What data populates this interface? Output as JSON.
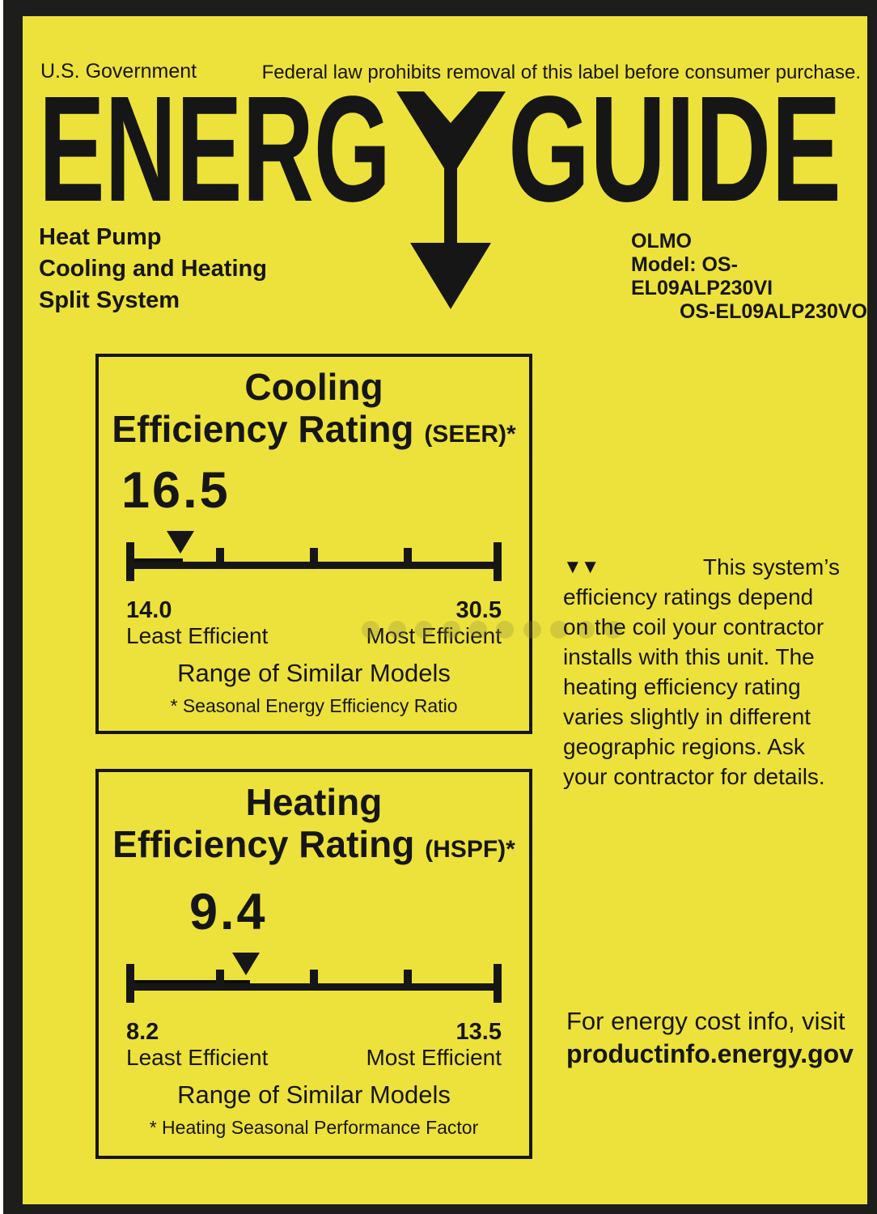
{
  "colors": {
    "background": "#EDE23B",
    "ink": "#161616"
  },
  "header": {
    "government": "U.S. Government",
    "federal_notice": "Federal law prohibits removal of this label before consumer purchase."
  },
  "logo": {
    "part1": "ENERG",
    "part2": "GUIDE",
    "full_name": "ENERGYGUIDE"
  },
  "product": {
    "lines": [
      "Heat Pump",
      "Cooling and Heating",
      "Split System"
    ]
  },
  "brand": {
    "name": "OLMO",
    "model_line1": "Model: OS-EL09ALP230VI",
    "model_line2": "OS-EL09ALP230VO"
  },
  "cooling": {
    "title": "Cooling",
    "rating_label": "Efficiency Rating",
    "rating_acronym": "(SEER)*",
    "value": "16.5",
    "scale": {
      "min": "14.0",
      "max": "30.5",
      "min_caption": "Least Efficient",
      "max_caption": "Most Efficient",
      "pointer_pct": 14.5,
      "segment_pct": 15
    },
    "range_caption": "Range of Similar Models",
    "footnote": "* Seasonal Energy Efficiency Ratio"
  },
  "heating": {
    "title": "Heating",
    "rating_label": "Efficiency Rating",
    "rating_acronym": "(HSPF)*",
    "value": "9.4",
    "scale": {
      "min": "8.2",
      "max": "13.5",
      "min_caption": "Least Efficient",
      "max_caption": "Most Efficient",
      "pointer_pct": 32,
      "segment_pct": 33
    },
    "range_caption": "Range of Similar Models",
    "footnote": "* Heating Seasonal Performance Factor"
  },
  "contractor_note": {
    "icon": "▼▼",
    "first_line": "This system’s",
    "lines": [
      "efficiency ratings depend",
      "on the coil your contractor",
      "installs with this unit. The",
      "heating efficiency rating",
      "varies slightly in different",
      "geographic regions. Ask",
      "your contractor for details."
    ]
  },
  "energy_info": {
    "line1": "For energy cost info, visit",
    "line2": "productinfo.energy.gov"
  }
}
